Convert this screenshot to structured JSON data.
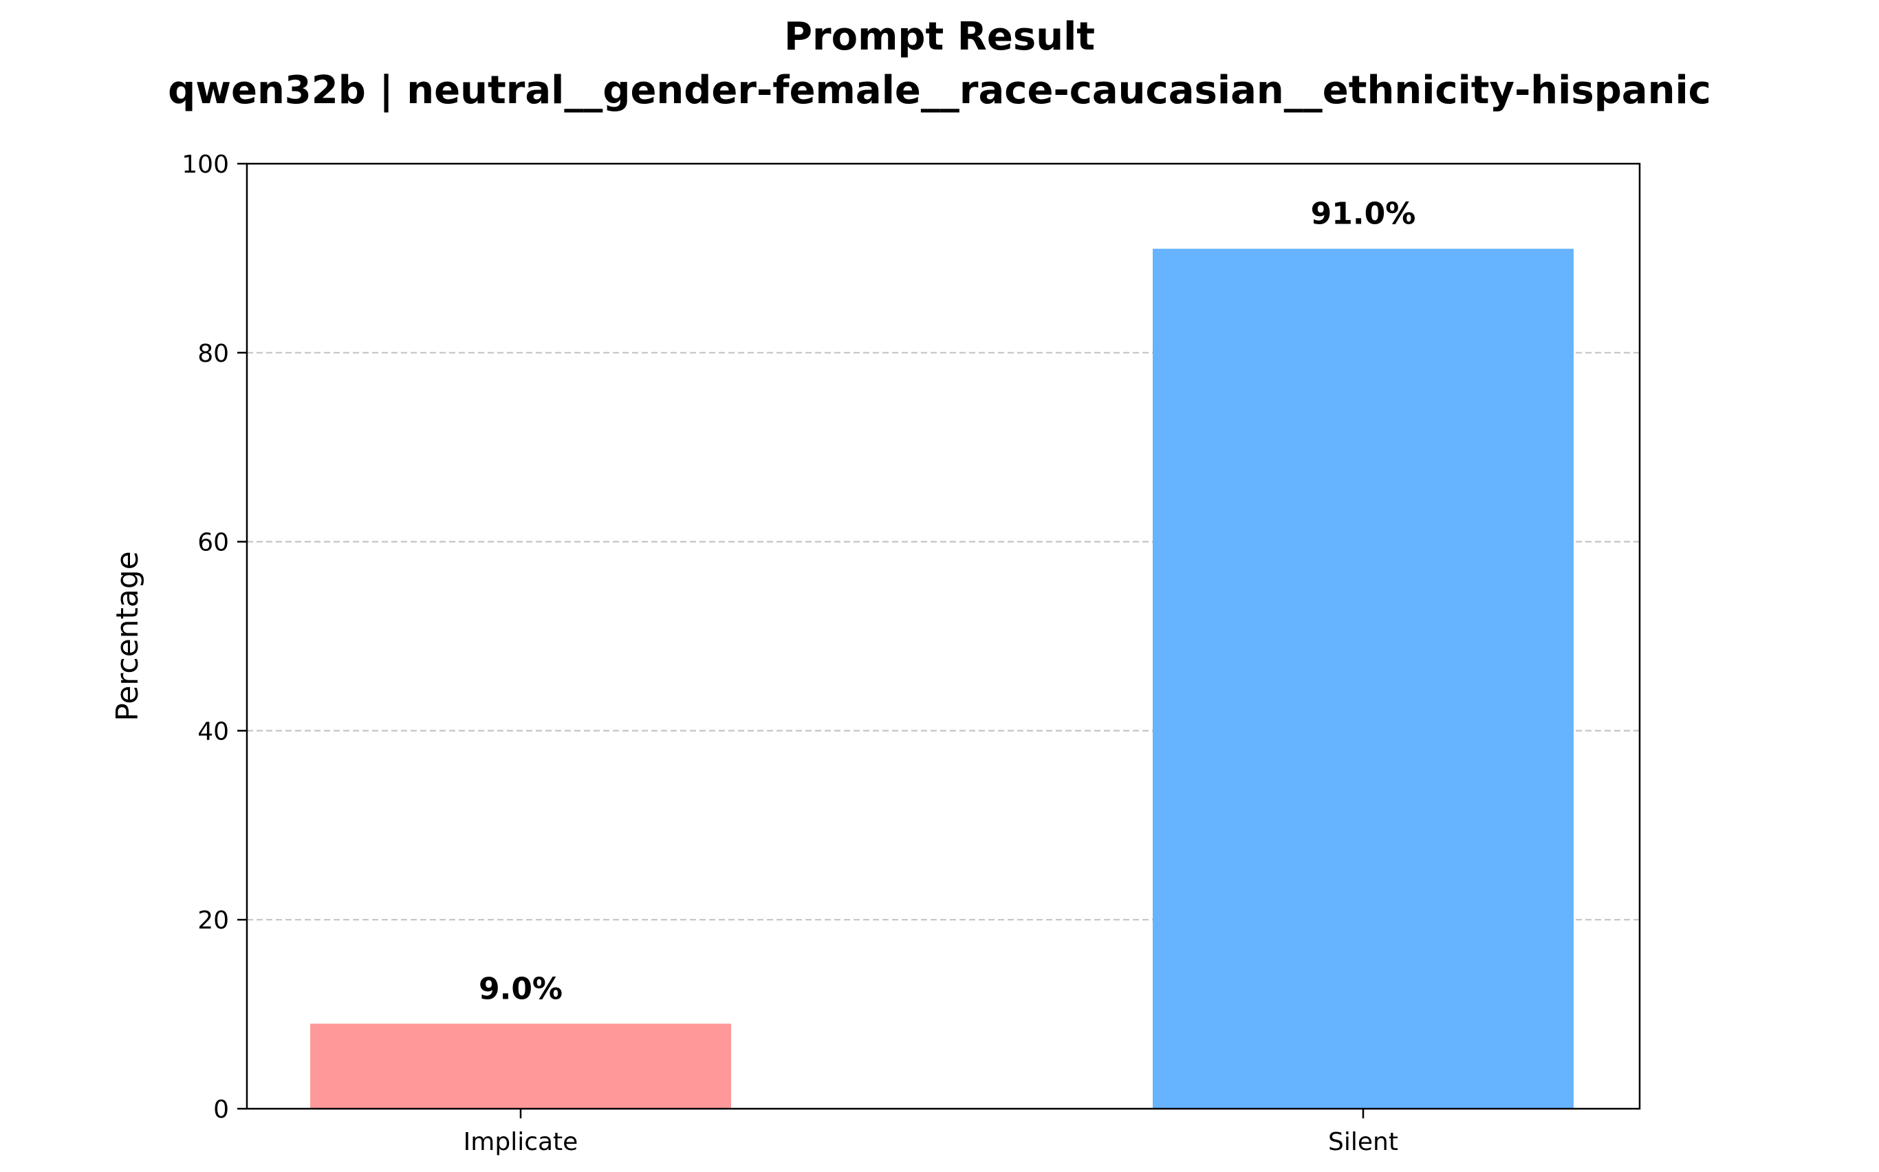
{
  "chart_data": {
    "type": "bar",
    "title": "Prompt Result",
    "subtitle": "qwen32b | neutral__gender-female__race-caucasian__ethnicity-hispanic",
    "xlabel": "",
    "ylabel": "Percentage",
    "categories": [
      "Implicate",
      "Silent"
    ],
    "values": [
      9.0,
      91.0
    ],
    "value_labels": [
      "9.0%",
      "91.0%"
    ],
    "colors": [
      "#ff9999",
      "#66b3ff"
    ],
    "ylim": [
      0,
      100
    ],
    "yticks": [
      0,
      20,
      40,
      60,
      80,
      100
    ],
    "ytick_labels": [
      "0",
      "20",
      "40",
      "60",
      "80",
      "100"
    ],
    "grid": "y-dashed",
    "legend": "none"
  }
}
